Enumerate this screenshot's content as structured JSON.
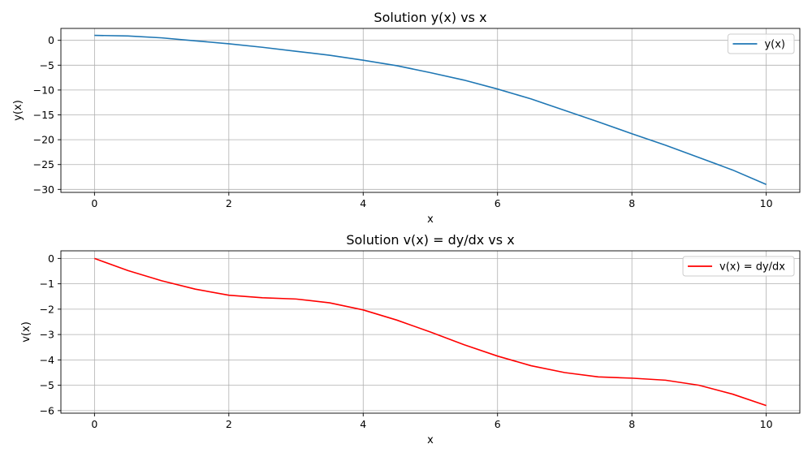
{
  "chart_data": [
    {
      "type": "line",
      "title": "Solution y(x) vs x",
      "xlabel": "x",
      "ylabel": "y(x)",
      "xlim": [
        -0.5,
        10.5
      ],
      "ylim": [
        -30.6,
        2.4
      ],
      "xticks": [
        0,
        2,
        4,
        6,
        8,
        10
      ],
      "yticks": [
        0,
        -5,
        -10,
        -15,
        -20,
        -25,
        -30
      ],
      "grid": true,
      "legend": "top-right",
      "series": [
        {
          "name": "y(x)",
          "color": "#1f77b4",
          "x": [
            0,
            0.5,
            1,
            1.5,
            2,
            2.5,
            3,
            3.5,
            4,
            4.5,
            5,
            5.5,
            6,
            6.5,
            7,
            7.5,
            8,
            8.5,
            9,
            9.5,
            10
          ],
          "y": [
            1.0,
            0.88,
            0.5,
            -0.1,
            -0.7,
            -1.4,
            -2.2,
            -3.0,
            -4.0,
            -5.1,
            -6.5,
            -8.0,
            -9.8,
            -11.8,
            -14.1,
            -16.4,
            -18.8,
            -21.1,
            -23.6,
            -26.1,
            -29.0
          ]
        }
      ]
    },
    {
      "type": "line",
      "title": "Solution v(x) = dy/dx vs x",
      "xlabel": "x",
      "ylabel": "v(x)",
      "xlim": [
        -0.5,
        10.5
      ],
      "ylim": [
        -6.1,
        0.3
      ],
      "xticks": [
        0,
        2,
        4,
        6,
        8,
        10
      ],
      "yticks": [
        0,
        -1,
        -2,
        -3,
        -4,
        -5,
        -6
      ],
      "grid": true,
      "legend": "top-right",
      "series": [
        {
          "name": "v(x) = dy/dx",
          "color": "#ff0000",
          "x": [
            0,
            0.5,
            1,
            1.5,
            2,
            2.5,
            3,
            3.5,
            4,
            4.5,
            5,
            5.5,
            6,
            6.5,
            7,
            7.5,
            8,
            8.5,
            9,
            9.5,
            10
          ],
          "y": [
            0,
            -0.48,
            -0.88,
            -1.21,
            -1.45,
            -1.55,
            -1.6,
            -1.75,
            -2.03,
            -2.43,
            -2.9,
            -3.4,
            -3.85,
            -4.23,
            -4.5,
            -4.67,
            -4.72,
            -4.8,
            -5.0,
            -5.35,
            -5.8
          ]
        }
      ]
    }
  ]
}
